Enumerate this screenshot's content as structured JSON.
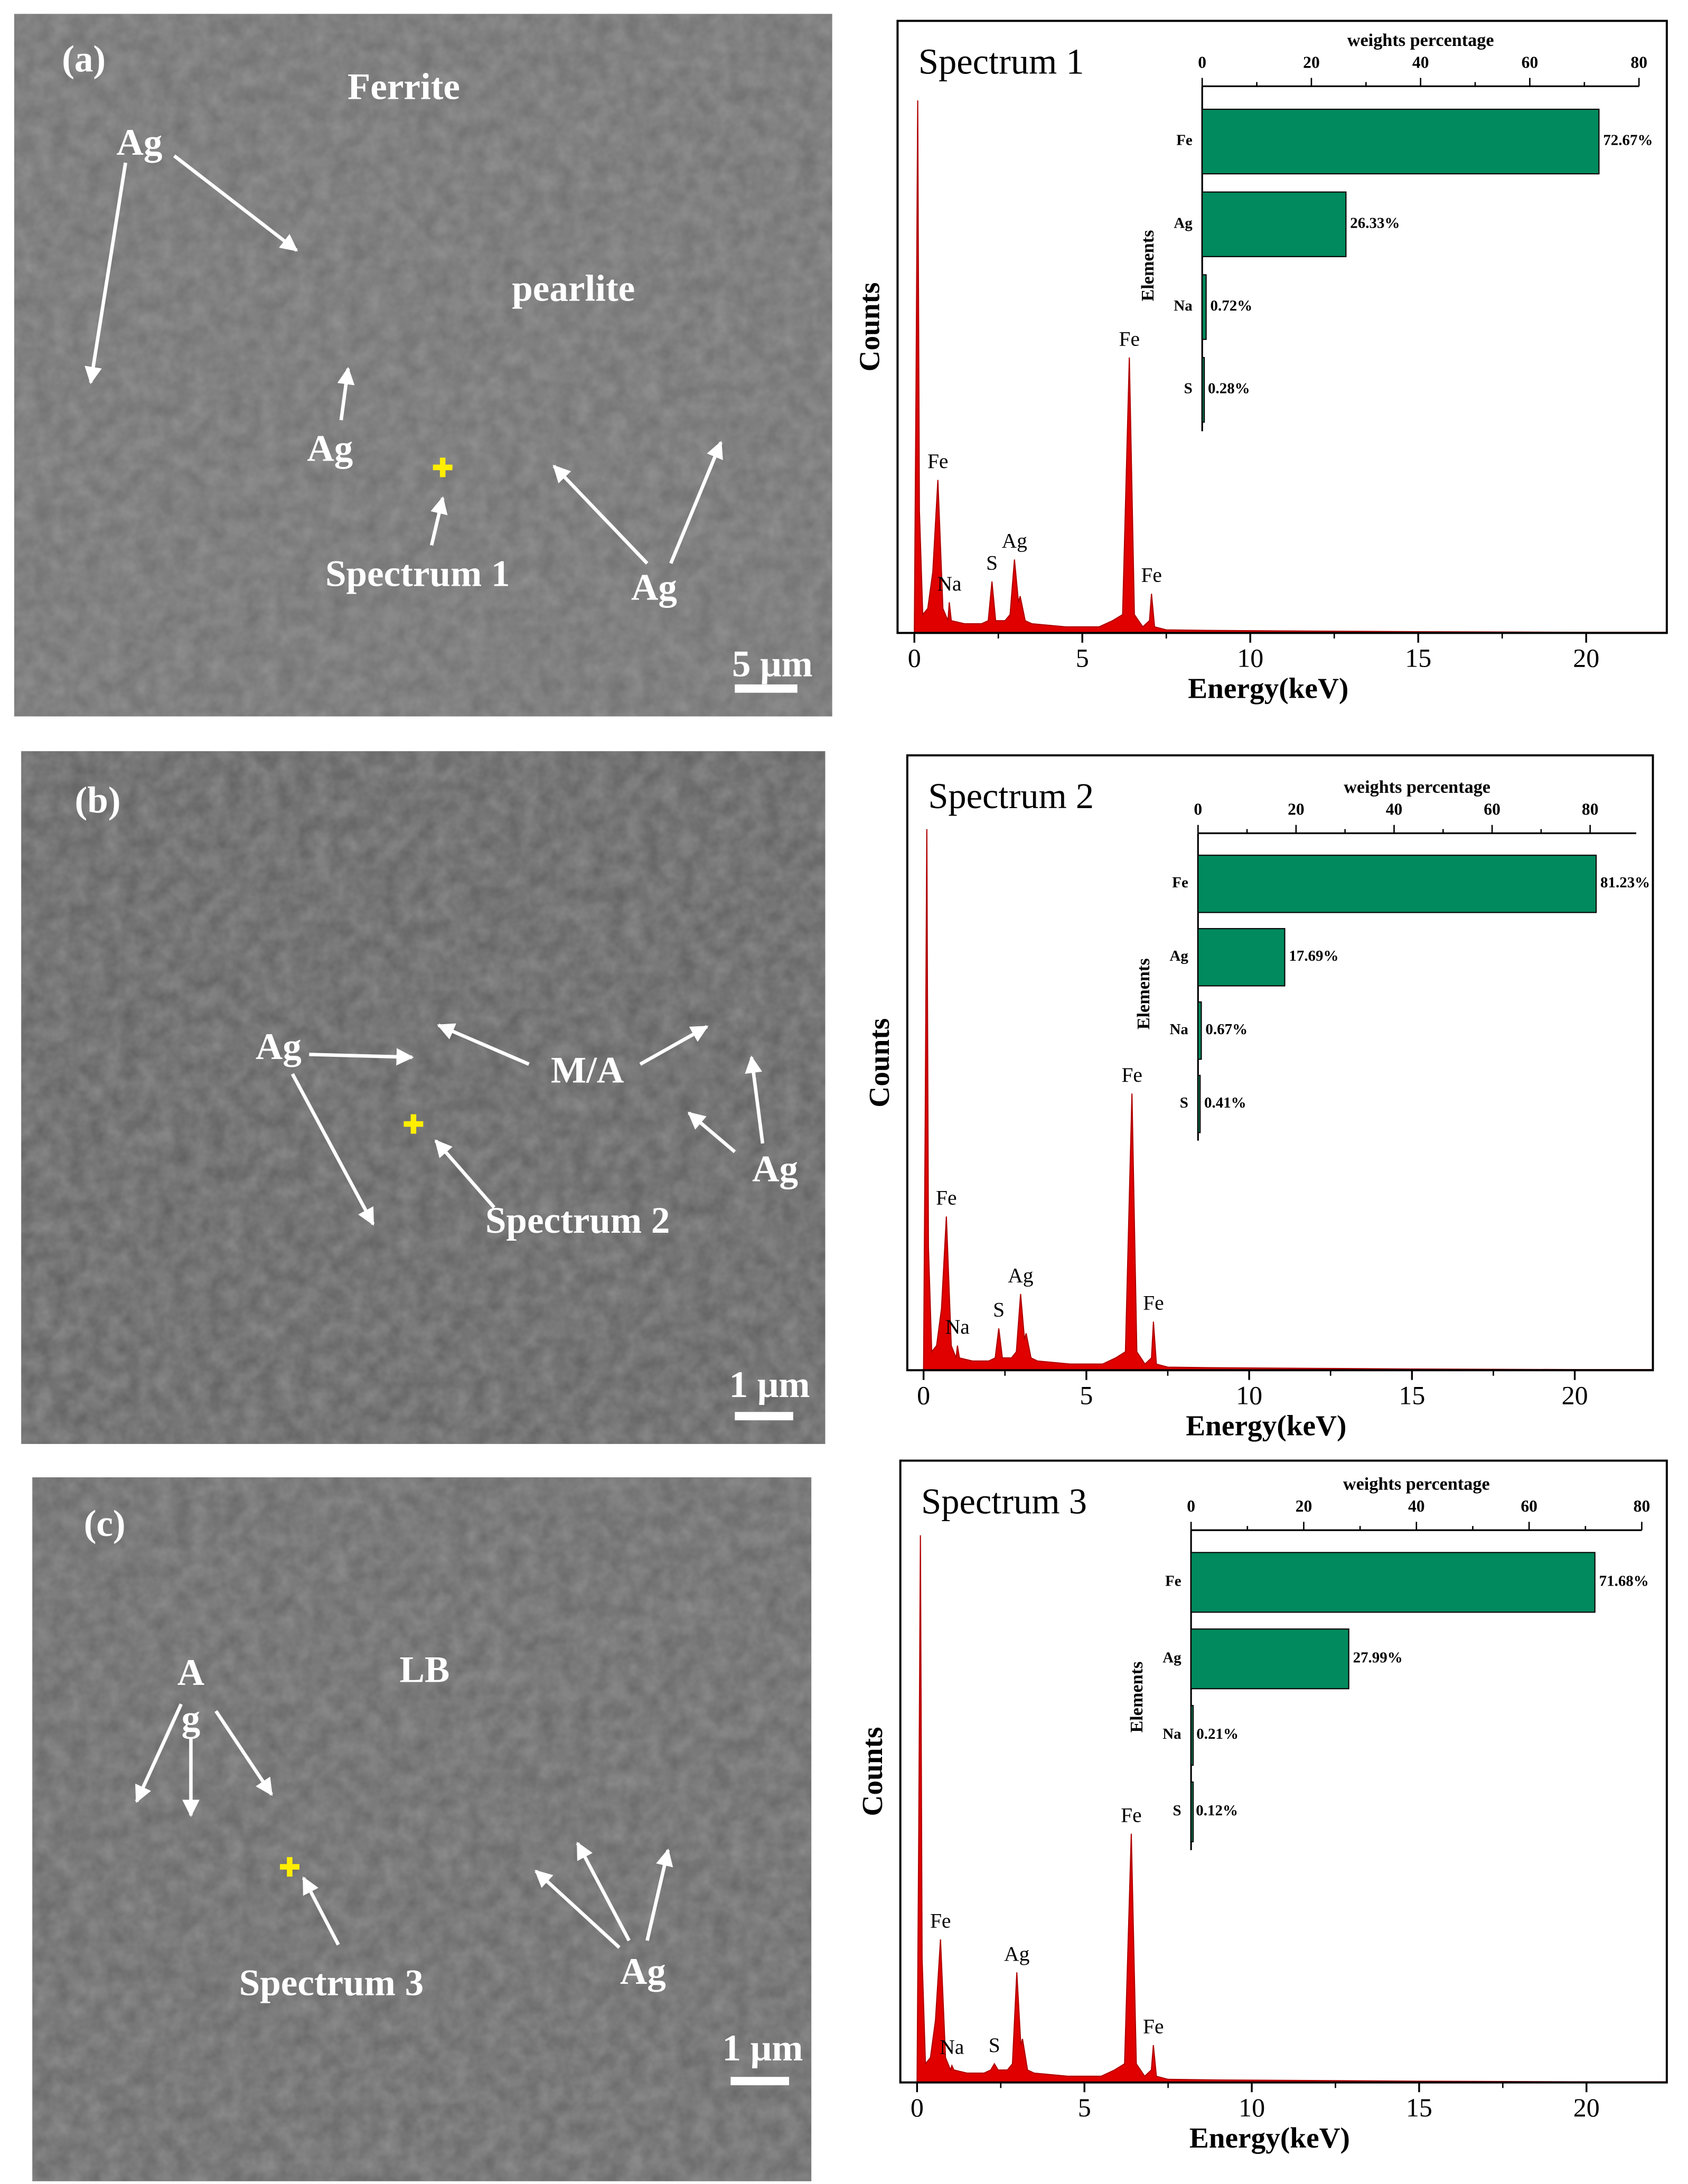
{
  "images": [
    {
      "label": "(a)",
      "annotations": [
        "Ferrite",
        "Ag",
        "pearlite",
        "Ag",
        "Spectrum 1",
        "Ag"
      ],
      "scale": "5 μm"
    },
    {
      "label": "(b)",
      "annotations": [
        "Ag",
        "M/A",
        "Spectrum 2",
        "Ag"
      ],
      "scale": "1 μm"
    },
    {
      "label": "(c)",
      "annotations": [
        "A",
        "g",
        "LB",
        "Spectrum 3",
        "Ag"
      ],
      "scale": "1 μm"
    }
  ],
  "chart_data": [
    {
      "type": "area",
      "title": "Spectrum 1",
      "x_label": "Energy(keV)",
      "y_label": "Counts",
      "color": "#e00000",
      "xlim": [
        -0.5,
        22.4
      ],
      "xticks": [
        0,
        5,
        10,
        15,
        20
      ],
      "ylim": [
        0,
        100
      ],
      "x": [
        0,
        0.05,
        0.1,
        0.15,
        0.25,
        0.4,
        0.55,
        0.7,
        0.85,
        1.0,
        1.04,
        1.1,
        1.5,
        2.0,
        2.2,
        2.31,
        2.42,
        2.7,
        2.85,
        2.98,
        3.1,
        3.15,
        3.3,
        3.5,
        4.5,
        5.5,
        5.9,
        6.2,
        6.4,
        6.55,
        6.8,
        7.0,
        7.06,
        7.15,
        7.5,
        9,
        12,
        15,
        20,
        22.4
      ],
      "values": [
        0,
        40,
        87,
        20,
        3,
        4,
        10,
        25,
        4,
        2,
        5,
        2,
        1.5,
        1.5,
        2,
        8.4,
        2,
        2,
        3,
        12,
        5,
        6,
        2,
        1.5,
        1,
        1,
        2,
        3,
        45,
        3,
        1,
        2,
        6.4,
        1,
        0.5,
        0.4,
        0.3,
        0.2,
        0.1,
        0.1
      ],
      "peak_labels": [
        {
          "label": "Fe",
          "x": 0.7
        },
        {
          "label": "Na",
          "x": 1.04
        },
        {
          "label": "S",
          "x": 2.31
        },
        {
          "label": "Ag",
          "x": 2.98
        },
        {
          "label": "Fe",
          "x": 6.4
        },
        {
          "label": "Fe",
          "x": 7.06
        }
      ]
    },
    {
      "type": "hbar",
      "x_label": "weights percentage",
      "y_label": "Elements",
      "color": "#008a5e",
      "categories": [
        "Fe",
        "Ag",
        "Na",
        "S"
      ],
      "values": [
        72.67,
        26.33,
        0.72,
        0.28
      ],
      "value_labels": [
        "72.67%",
        "26.33%",
        "0.72%",
        "0.28%"
      ],
      "xlim": [
        0,
        80
      ],
      "xticks": [
        0,
        20,
        40,
        60,
        80
      ]
    },
    {
      "type": "area",
      "title": "Spectrum 2",
      "x_label": "Energy(keV)",
      "y_label": "Counts",
      "color": "#e00000",
      "xlim": [
        -0.5,
        22.4
      ],
      "xticks": [
        0,
        5,
        10,
        15,
        20
      ],
      "ylim": [
        0,
        100
      ],
      "x": [
        0,
        0.05,
        0.1,
        0.15,
        0.25,
        0.4,
        0.55,
        0.7,
        0.85,
        1.0,
        1.04,
        1.1,
        1.5,
        2.0,
        2.2,
        2.31,
        2.42,
        2.7,
        2.85,
        2.98,
        3.1,
        3.15,
        3.3,
        3.5,
        4.5,
        5.5,
        5.9,
        6.2,
        6.4,
        6.55,
        6.8,
        7.0,
        7.06,
        7.15,
        7.5,
        9,
        12,
        15,
        20,
        22.4
      ],
      "values": [
        0,
        40,
        88,
        20,
        3,
        4,
        10,
        25,
        4,
        2,
        4,
        2,
        1.5,
        1.5,
        2,
        6.8,
        2,
        2,
        3,
        12.4,
        5,
        6,
        2,
        1.5,
        1,
        1,
        2,
        3,
        45,
        3,
        1,
        2,
        7.9,
        1,
        0.5,
        0.4,
        0.3,
        0.2,
        0.1,
        0.1
      ],
      "peak_labels": [
        {
          "label": "Fe",
          "x": 0.7
        },
        {
          "label": "Na",
          "x": 1.04
        },
        {
          "label": "S",
          "x": 2.31
        },
        {
          "label": "Ag",
          "x": 2.98
        },
        {
          "label": "Fe",
          "x": 6.4
        },
        {
          "label": "Fe",
          "x": 7.06
        }
      ]
    },
    {
      "type": "hbar",
      "x_label": "weights percentage",
      "y_label": "Elements",
      "color": "#008a5e",
      "categories": [
        "Fe",
        "Ag",
        "Na",
        "S"
      ],
      "values": [
        81.23,
        17.69,
        0.67,
        0.41
      ],
      "value_labels": [
        "81.23%",
        "17.69%",
        "0.67%",
        "0.41%"
      ],
      "xlim": [
        0,
        89.4
      ],
      "xticks": [
        0,
        20,
        40,
        60,
        80
      ]
    },
    {
      "type": "area",
      "title": "Spectrum 3",
      "x_label": "Energy(keV)",
      "y_label": "Counts",
      "color": "#e00000",
      "xlim": [
        -0.5,
        22.4
      ],
      "xticks": [
        0,
        5,
        10,
        15,
        20
      ],
      "ylim": [
        0,
        100
      ],
      "x": [
        0,
        0.05,
        0.1,
        0.15,
        0.25,
        0.4,
        0.55,
        0.7,
        0.85,
        1.0,
        1.04,
        1.1,
        1.5,
        2.0,
        2.2,
        2.31,
        2.42,
        2.7,
        2.85,
        2.98,
        3.1,
        3.15,
        3.3,
        3.5,
        4.5,
        5.5,
        5.9,
        6.2,
        6.4,
        6.55,
        6.8,
        7.0,
        7.06,
        7.15,
        7.5,
        9,
        12,
        15,
        20,
        22.4
      ],
      "values": [
        0,
        40,
        88,
        20,
        3,
        4,
        10,
        23,
        4,
        2,
        2.7,
        2,
        1.5,
        1.5,
        2,
        3,
        2,
        2,
        3,
        17.7,
        6,
        7,
        2,
        1.5,
        1,
        1,
        2,
        3,
        40,
        3,
        1,
        2,
        6,
        1,
        0.5,
        0.4,
        0.3,
        0.2,
        0.1,
        0.1
      ],
      "peak_labels": [
        {
          "label": "Fe",
          "x": 0.7
        },
        {
          "label": "Na",
          "x": 1.04
        },
        {
          "label": "S",
          "x": 2.31
        },
        {
          "label": "Ag",
          "x": 2.98
        },
        {
          "label": "Fe",
          "x": 6.4
        },
        {
          "label": "Fe",
          "x": 7.06
        }
      ]
    },
    {
      "type": "hbar",
      "x_label": "weights percentage",
      "y_label": "Elements",
      "color": "#008a5e",
      "categories": [
        "Fe",
        "Ag",
        "Na",
        "S"
      ],
      "values": [
        71.68,
        27.99,
        0.21,
        0.12
      ],
      "value_labels": [
        "71.68%",
        "27.99%",
        "0.21%",
        "0.12%"
      ],
      "xlim": [
        0,
        80
      ],
      "xticks": [
        0,
        20,
        40,
        60,
        80
      ]
    }
  ]
}
